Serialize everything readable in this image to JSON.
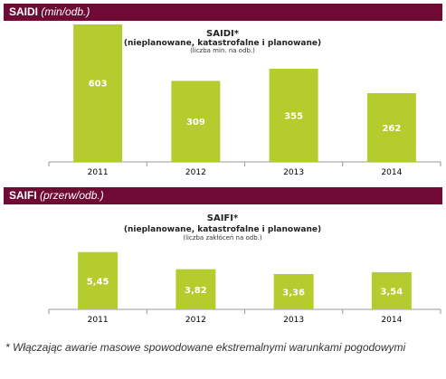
{
  "section1": {
    "label_bold": "SAIDI",
    "label_italic": "(min/odb.)"
  },
  "section2": {
    "label_bold": "SAIFI",
    "label_italic": "(przerw/odb.)"
  },
  "footnote": "* Włączając awarie masowe spowodowane ekstremalnymi warunkami pogodowymi",
  "colors": {
    "header": "#6e0a34",
    "bar": "#b5cc2e"
  },
  "chart_data": [
    {
      "type": "bar",
      "title": "SAIDI*",
      "subtitle": "(nieplanowane, katastrofalne i planowane)",
      "unit_note": "(liczba min. na odb.)",
      "categories": [
        "2011",
        "2012",
        "2013",
        "2014"
      ],
      "values": [
        603,
        309,
        355,
        262
      ],
      "value_labels": [
        "603",
        "309",
        "355",
        "262"
      ],
      "ylim": [
        0,
        700
      ]
    },
    {
      "type": "bar",
      "title": "SAIFI*",
      "subtitle": "(nieplanowane,  katastrofalne i planowane)",
      "unit_note": "(liczba zakłóceń na odb.)",
      "categories": [
        "2011",
        "2012",
        "2013",
        "2014"
      ],
      "values": [
        5.45,
        3.82,
        3.36,
        3.54
      ],
      "value_labels": [
        "5,45",
        "3,82",
        "3,36",
        "3,54"
      ],
      "ylim": [
        0,
        7
      ]
    }
  ]
}
